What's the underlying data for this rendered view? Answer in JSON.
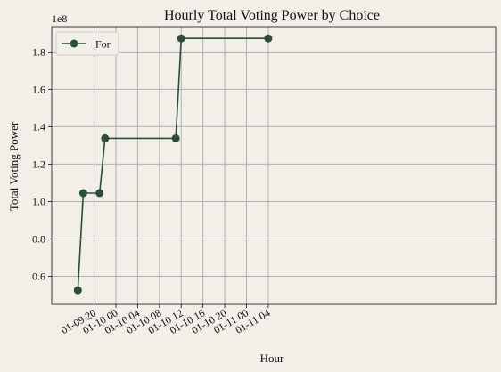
{
  "chart_data": {
    "type": "line",
    "title": "Hourly Total Voting Power by Choice",
    "xlabel": "Hour",
    "ylabel": "Total Voting Power",
    "y_offset_label": "1e8",
    "y_scale": 100000000,
    "ylim": [
      0.45,
      1.935
    ],
    "xlim_hours": [
      12.2,
      93.8
    ],
    "x_ticks": [
      {
        "h": 20,
        "label": "01-09 20"
      },
      {
        "h": 24,
        "label": "01-10 00"
      },
      {
        "h": 28,
        "label": "01-10 04"
      },
      {
        "h": 32,
        "label": "01-10 08"
      },
      {
        "h": 36,
        "label": "01-10 12"
      },
      {
        "h": 40,
        "label": "01-10 16"
      },
      {
        "h": 44,
        "label": "01-10 20"
      },
      {
        "h": 48,
        "label": "01-11 00"
      },
      {
        "h": 52,
        "label": "01-11 04"
      }
    ],
    "y_ticks": [
      {
        "v": 0.6,
        "label": "0.6"
      },
      {
        "v": 0.8,
        "label": "0.8"
      },
      {
        "v": 1.0,
        "label": "1.0"
      },
      {
        "v": 1.2,
        "label": "1.2"
      },
      {
        "v": 1.4,
        "label": "1.4"
      },
      {
        "v": 1.6,
        "label": "1.6"
      },
      {
        "v": 1.8,
        "label": "1.8"
      }
    ],
    "grid": true,
    "legend_position": "upper left",
    "series": [
      {
        "name": "For",
        "color": "#2b4d3a",
        "points": [
          {
            "x": "01-09 17",
            "h": 17,
            "y": 0.525
          },
          {
            "x": "01-09 18",
            "h": 18,
            "y": 1.045
          },
          {
            "x": "01-09 21",
            "h": 21,
            "y": 1.045
          },
          {
            "x": "01-09 22",
            "h": 22,
            "y": 1.338
          },
          {
            "x": "01-10 11",
            "h": 35,
            "y": 1.338
          },
          {
            "x": "01-10 12",
            "h": 36,
            "y": 1.872
          },
          {
            "x": "01-11 04",
            "h": 52,
            "y": 1.872
          }
        ]
      }
    ]
  }
}
